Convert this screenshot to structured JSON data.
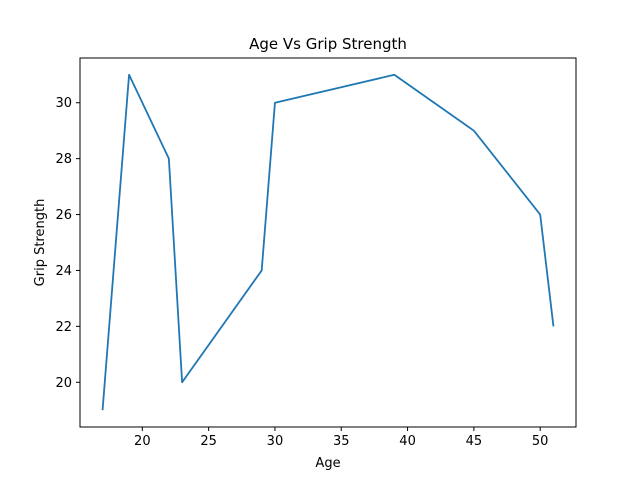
{
  "chart_data": {
    "type": "line",
    "title": "Age Vs Grip Strength",
    "xlabel": "Age",
    "ylabel": "Grip Strength",
    "xlim": [
      15.3,
      52.7
    ],
    "ylim": [
      18.4,
      31.6
    ],
    "xticks": [
      20,
      25,
      30,
      35,
      40,
      45,
      50
    ],
    "yticks": [
      20,
      22,
      24,
      26,
      28,
      30
    ],
    "grid": false,
    "series": [
      {
        "color": "#1f77b4",
        "x": [
          17,
          19,
          22,
          23,
          29,
          30,
          39,
          45,
          50,
          51
        ],
        "y": [
          19,
          31,
          28,
          20,
          24,
          30,
          31,
          29,
          26,
          22
        ]
      }
    ]
  }
}
